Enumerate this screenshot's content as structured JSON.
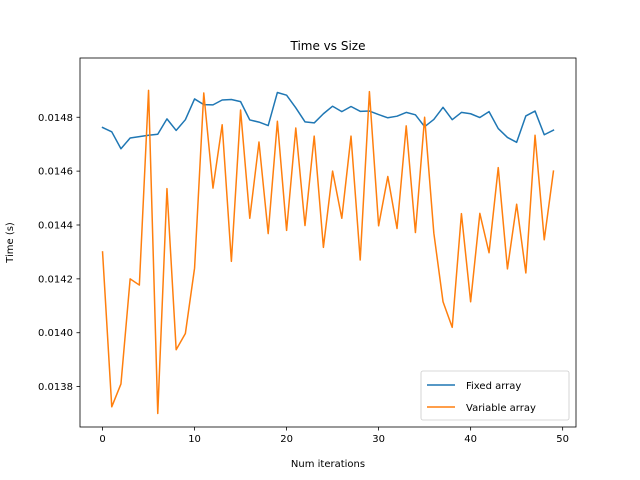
{
  "chart_data": {
    "type": "line",
    "title": "Time vs Size",
    "xlabel": "Num iterations",
    "ylabel": "Time (s)",
    "xlim": [
      -2.45,
      51.45
    ],
    "ylim": [
      0.01365,
      0.01502
    ],
    "xticks": [
      0,
      10,
      20,
      30,
      40,
      50
    ],
    "yticks": [
      0.0138,
      0.014,
      0.0142,
      0.0144,
      0.0146,
      0.0148
    ],
    "ytick_labels": [
      "0.0138",
      "0.0140",
      "0.0142",
      "0.0144",
      "0.0146",
      "0.0148"
    ],
    "grid": false,
    "legend_position": "lower-right",
    "x": [
      0,
      1,
      2,
      3,
      4,
      5,
      6,
      7,
      8,
      9,
      10,
      11,
      12,
      13,
      14,
      15,
      16,
      17,
      18,
      19,
      20,
      21,
      22,
      23,
      24,
      25,
      26,
      27,
      28,
      29,
      30,
      31,
      32,
      33,
      34,
      35,
      36,
      37,
      38,
      39,
      40,
      41,
      42,
      43,
      44,
      45,
      46,
      47,
      48,
      49
    ],
    "series": [
      {
        "name": "Fixed array",
        "color": "#1f77b4",
        "values": [
          0.014762,
          0.014746,
          0.014683,
          0.014723,
          0.014728,
          0.014733,
          0.014737,
          0.014794,
          0.014751,
          0.014791,
          0.014868,
          0.014847,
          0.014846,
          0.014864,
          0.014866,
          0.014858,
          0.01479,
          0.014782,
          0.014769,
          0.014892,
          0.014882,
          0.014835,
          0.014783,
          0.014779,
          0.014813,
          0.014841,
          0.014821,
          0.01484,
          0.014822,
          0.014823,
          0.01481,
          0.014798,
          0.014804,
          0.014818,
          0.014809,
          0.014765,
          0.014792,
          0.014837,
          0.014791,
          0.014818,
          0.014813,
          0.014799,
          0.014821,
          0.014758,
          0.014725,
          0.014707,
          0.014805,
          0.014823,
          0.014735,
          0.014752
        ]
      },
      {
        "name": "Variable array",
        "color": "#ff7f0e",
        "values": [
          0.0143,
          0.013725,
          0.01381,
          0.0142,
          0.014177,
          0.0149,
          0.0137,
          0.014535,
          0.013937,
          0.013997,
          0.01424,
          0.01489,
          0.014537,
          0.014772,
          0.014265,
          0.014827,
          0.014425,
          0.014708,
          0.014368,
          0.014785,
          0.01438,
          0.01476,
          0.014398,
          0.01473,
          0.014317,
          0.0146,
          0.014425,
          0.01473,
          0.01427,
          0.014895,
          0.014397,
          0.01458,
          0.014387,
          0.014768,
          0.014372,
          0.0148,
          0.01437,
          0.014115,
          0.01402,
          0.014442,
          0.014115,
          0.014443,
          0.014297,
          0.014613,
          0.014237,
          0.014477,
          0.014222,
          0.014733,
          0.014345,
          0.0146
        ]
      }
    ]
  }
}
